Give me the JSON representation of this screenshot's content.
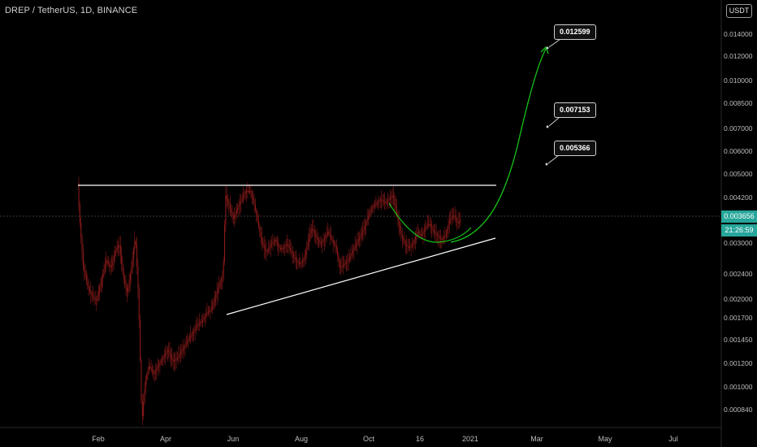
{
  "header": {
    "title": "DREP / TetherUS, 1D, BINANCE",
    "unit": "USDT"
  },
  "price_tags": {
    "last_price": "0.003656",
    "countdown": "21:26:59"
  },
  "callouts": [
    "0.012599",
    "0.007153",
    "0.005366"
  ],
  "colors": {
    "background": "#000000",
    "candles": "#8b1a1a",
    "horizontal_line": "#ffffff",
    "trend_line": "#ffffff",
    "projection": "#17c117",
    "price_tag": "#26a69a"
  },
  "chart_data": {
    "type": "candlestick",
    "title": "DREP / TetherUS, 1D, BINANCE",
    "y_scale": "log",
    "ylim": [
      0.0008,
      0.016
    ],
    "grid": false,
    "y_ticks": [
      "0.014000",
      "0.012000",
      "0.010000",
      "0.008500",
      "0.007000",
      "0.006000",
      "0.005000",
      "0.004200",
      "0.003000",
      "0.002400",
      "0.002000",
      "0.001700",
      "0.001450",
      "0.001200",
      "0.001000",
      "0.000840"
    ],
    "x_ticks": [
      "Feb",
      "Apr",
      "Jun",
      "Aug",
      "Oct",
      "16",
      "2021",
      "Mar",
      "May",
      "Jul"
    ],
    "last_price": 0.003656,
    "drawings": {
      "resistance_level": 0.0047,
      "callout_targets": [
        0.012599,
        0.007153,
        0.005366
      ]
    }
  }
}
